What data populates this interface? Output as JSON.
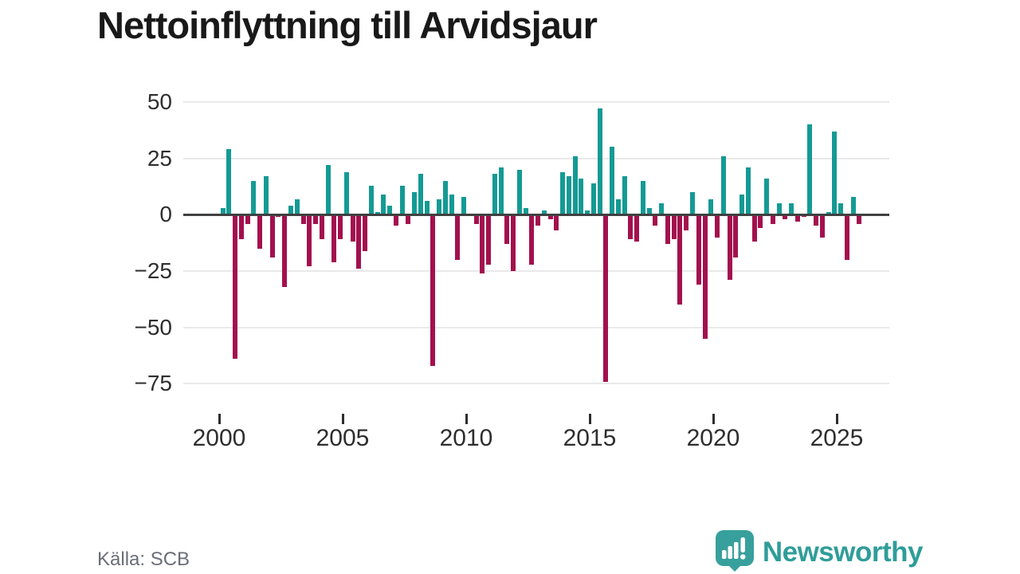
{
  "header": {
    "title": "Nettoinflyttning till Arvidsjaur"
  },
  "footer": {
    "source_label": "Källa: SCB",
    "brand_name": "Newsworthy"
  },
  "colors": {
    "positive": "#149a94",
    "negative": "#a3104e",
    "axis": "#404040",
    "gridline": "#e9e9e9",
    "logo_teal": "#38a09c",
    "brand_text": "#2f9d99"
  },
  "chart_data": {
    "type": "bar",
    "title": "Nettoinflyttning till Arvidsjaur",
    "x_unit": "quarter",
    "start_year": 2000,
    "quarters_per_year": 4,
    "start": "2000 Q1",
    "end": "2025 Q4",
    "ylim": [
      -80,
      55
    ],
    "grid": "horizontal",
    "y_ticks": [
      50,
      25,
      0,
      -25,
      -50,
      -75
    ],
    "y_tick_labels": [
      "50",
      "25",
      "0",
      "−25",
      "−50",
      "−75"
    ],
    "x_tick_years": [
      2000,
      2005,
      2010,
      2015,
      2020,
      2025
    ],
    "x_tick_labels": [
      "2000",
      "2005",
      "2010",
      "2015",
      "2020",
      "2025"
    ],
    "values": [
      3,
      29,
      -64,
      -11,
      -4,
      15,
      -15,
      17,
      -19,
      -1,
      -32,
      4,
      7,
      -4,
      -23,
      -4,
      -11,
      22,
      -21,
      -11,
      19,
      -12,
      -24,
      -16,
      13,
      1,
      9,
      4,
      -5,
      13,
      -4,
      10,
      18,
      6,
      -67,
      7,
      15,
      9,
      -20,
      8,
      0,
      -4,
      -26,
      -22,
      18,
      21,
      -13,
      -25,
      20,
      3,
      -22,
      -5,
      2,
      -2,
      -7,
      19,
      17,
      26,
      16,
      2,
      14,
      47,
      -74,
      30,
      7,
      17,
      -11,
      -12,
      15,
      3,
      -5,
      5,
      -13,
      -11,
      -40,
      -7,
      10,
      -31,
      -55,
      7,
      -10,
      26,
      -29,
      -19,
      9,
      21,
      -12,
      -6,
      16,
      -4,
      5,
      -2,
      5,
      -3,
      -1,
      40,
      -5,
      -10,
      1,
      37,
      5,
      -20,
      8,
      -4
    ]
  }
}
